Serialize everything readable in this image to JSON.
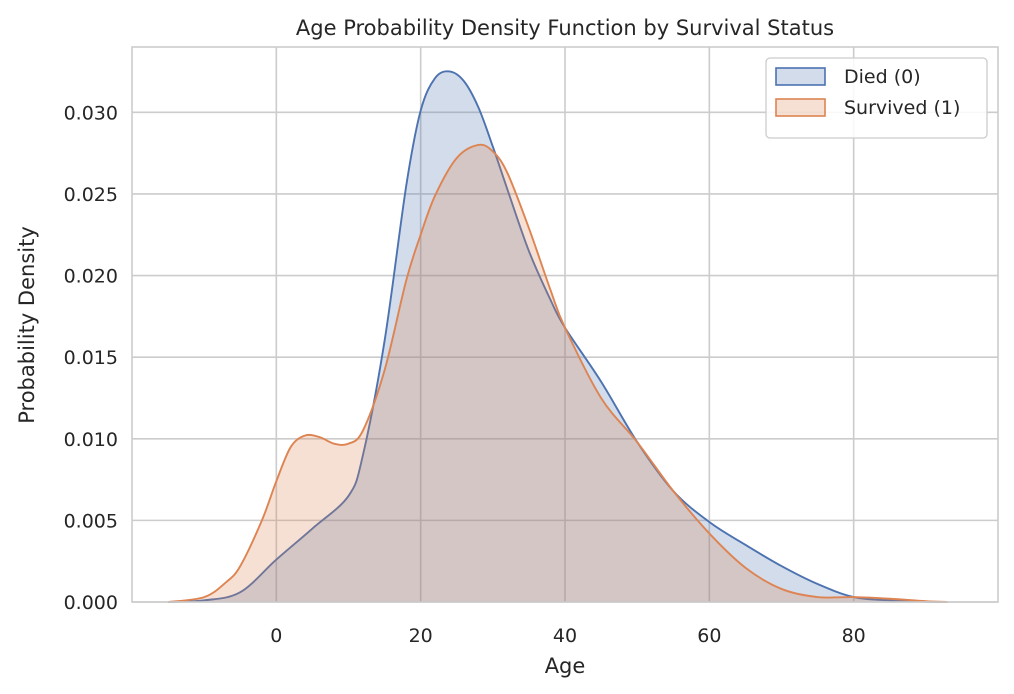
{
  "chart_data": {
    "type": "area",
    "title": "Age Probability Density Function by Survival Status",
    "xlabel": "Age",
    "ylabel": "Probability Density",
    "xlim": [
      -20,
      100
    ],
    "ylim": [
      0,
      0.034
    ],
    "xticks": [
      0,
      20,
      40,
      60,
      80
    ],
    "yticks": [
      0.0,
      0.005,
      0.01,
      0.015,
      0.02,
      0.025,
      0.03
    ],
    "ytick_labels": [
      "0.000",
      "0.005",
      "0.010",
      "0.015",
      "0.020",
      "0.025",
      "0.030"
    ],
    "grid": true,
    "legend_position": "top-right",
    "series": [
      {
        "name": "Died (0)",
        "color": "#4c72b0",
        "x": [
          -15,
          -10,
          -5,
          0,
          5,
          10,
          12,
          15,
          18,
          20,
          22,
          24,
          26,
          28,
          30,
          32,
          35,
          38,
          40,
          45,
          50,
          55,
          60,
          65,
          70,
          75,
          80,
          85,
          90,
          93
        ],
        "y": [
          0,
          0.0001,
          0.0006,
          0.0026,
          0.0045,
          0.0065,
          0.009,
          0.016,
          0.0255,
          0.0301,
          0.0321,
          0.0325,
          0.0319,
          0.0303,
          0.0279,
          0.0253,
          0.0215,
          0.0185,
          0.0168,
          0.0135,
          0.0098,
          0.0068,
          0.0049,
          0.0035,
          0.0022,
          0.0011,
          0.0003,
          0.0001,
          2e-05,
          0
        ]
      },
      {
        "name": "Survived (1)",
        "color": "#dd8452",
        "x": [
          -15,
          -10,
          -7,
          -5,
          -2,
          0,
          2,
          4,
          6,
          8,
          10,
          12,
          15,
          18,
          20,
          22,
          25,
          28,
          30,
          32,
          35,
          38,
          40,
          45,
          50,
          55,
          60,
          65,
          70,
          75,
          80,
          85,
          90,
          93
        ],
        "y": [
          0,
          0.0003,
          0.0012,
          0.0022,
          0.005,
          0.0074,
          0.0095,
          0.0102,
          0.0101,
          0.0097,
          0.0097,
          0.0105,
          0.0142,
          0.0197,
          0.0225,
          0.0249,
          0.0272,
          0.028,
          0.0276,
          0.0263,
          0.0229,
          0.0191,
          0.0168,
          0.0125,
          0.0098,
          0.0068,
          0.0042,
          0.0021,
          0.0008,
          0.0003,
          0.0003,
          0.0002,
          5e-05,
          0
        ]
      }
    ]
  }
}
